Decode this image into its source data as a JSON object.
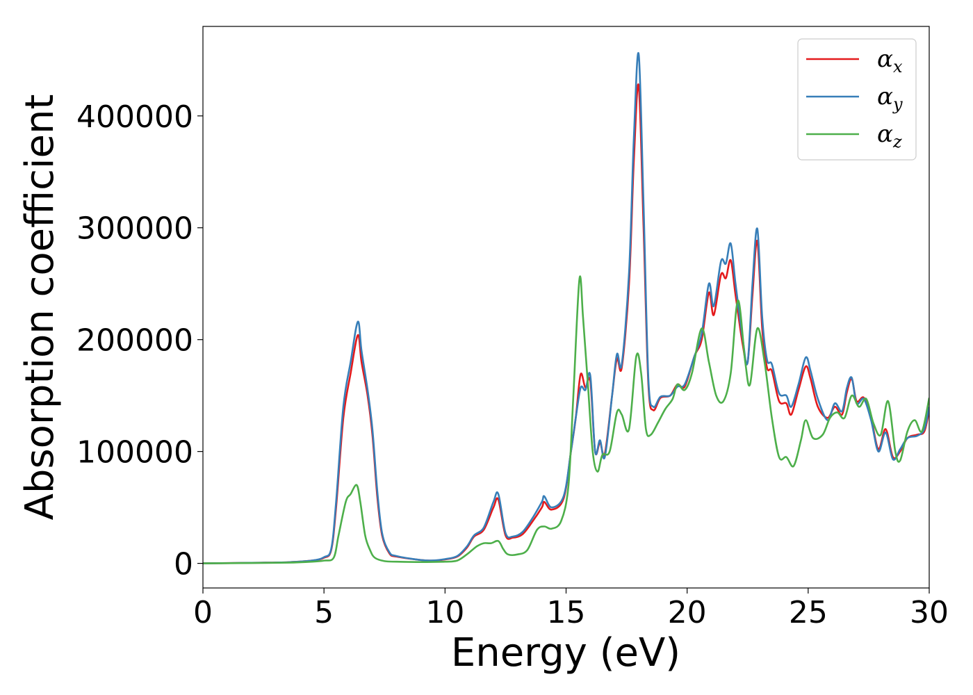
{
  "chart_data": {
    "type": "line",
    "xlabel": "Energy (eV)",
    "ylabel": "Absorption coefficient",
    "xlim": [
      0,
      30
    ],
    "ylim": [
      -22000,
      480000
    ],
    "x_ticks": [
      "0",
      "5",
      "10",
      "15",
      "20",
      "25",
      "30"
    ],
    "x_tick_values": [
      0,
      5,
      10,
      15,
      20,
      25,
      30
    ],
    "y_ticks": [
      "0",
      "100000",
      "200000",
      "300000",
      "400000"
    ],
    "y_tick_values": [
      0,
      100000,
      200000,
      300000,
      400000
    ],
    "grid": false,
    "legend_placement": "top-right",
    "series": [
      {
        "name": "α",
        "subscript": "x",
        "color": "#e41a1c",
        "points": [
          [
            0,
            0
          ],
          [
            2,
            500
          ],
          [
            3.5,
            1000
          ],
          [
            4.5,
            2500
          ],
          [
            5,
            5000
          ],
          [
            5.3,
            12000
          ],
          [
            5.5,
            50000
          ],
          [
            5.8,
            130000
          ],
          [
            6.1,
            170000
          ],
          [
            6.4,
            204000
          ],
          [
            6.55,
            180000
          ],
          [
            6.8,
            150000
          ],
          [
            7.0,
            115000
          ],
          [
            7.2,
            60000
          ],
          [
            7.4,
            25000
          ],
          [
            7.7,
            9000
          ],
          [
            8,
            6000
          ],
          [
            9,
            3000
          ],
          [
            9.5,
            2500
          ],
          [
            10,
            3500
          ],
          [
            10.5,
            6000
          ],
          [
            10.9,
            14000
          ],
          [
            11.2,
            24000
          ],
          [
            11.6,
            30000
          ],
          [
            12.0,
            50000
          ],
          [
            12.2,
            57000
          ],
          [
            12.5,
            25000
          ],
          [
            12.8,
            23000
          ],
          [
            13.2,
            26000
          ],
          [
            13.6,
            37000
          ],
          [
            14.0,
            50000
          ],
          [
            14.1,
            55000
          ],
          [
            14.4,
            48000
          ],
          [
            14.9,
            58000
          ],
          [
            15.2,
            100000
          ],
          [
            15.4,
            130000
          ],
          [
            15.6,
            169000
          ],
          [
            15.8,
            157000
          ],
          [
            16.0,
            163000
          ],
          [
            16.2,
            100000
          ],
          [
            16.4,
            108000
          ],
          [
            16.6,
            98000
          ],
          [
            16.9,
            150000
          ],
          [
            17.1,
            183000
          ],
          [
            17.3,
            175000
          ],
          [
            17.6,
            250000
          ],
          [
            17.8,
            360000
          ],
          [
            18.0,
            427000
          ],
          [
            18.2,
            300000
          ],
          [
            18.4,
            160000
          ],
          [
            18.6,
            137000
          ],
          [
            18.9,
            148000
          ],
          [
            19.3,
            150000
          ],
          [
            19.6,
            160000
          ],
          [
            19.9,
            158000
          ],
          [
            20.3,
            185000
          ],
          [
            20.6,
            200000
          ],
          [
            20.9,
            242000
          ],
          [
            21.1,
            222000
          ],
          [
            21.4,
            258000
          ],
          [
            21.6,
            255000
          ],
          [
            21.8,
            271000
          ],
          [
            22.0,
            240000
          ],
          [
            22.3,
            195000
          ],
          [
            22.5,
            180000
          ],
          [
            22.7,
            240000
          ],
          [
            22.9,
            288000
          ],
          [
            23.1,
            210000
          ],
          [
            23.3,
            175000
          ],
          [
            23.5,
            172000
          ],
          [
            23.8,
            145000
          ],
          [
            24.1,
            143000
          ],
          [
            24.3,
            133000
          ],
          [
            24.6,
            155000
          ],
          [
            24.9,
            176000
          ],
          [
            25.1,
            165000
          ],
          [
            25.4,
            140000
          ],
          [
            25.8,
            130000
          ],
          [
            26.1,
            140000
          ],
          [
            26.4,
            133000
          ],
          [
            26.6,
            153000
          ],
          [
            26.8,
            165000
          ],
          [
            27.0,
            145000
          ],
          [
            27.3,
            148000
          ],
          [
            27.6,
            130000
          ],
          [
            27.9,
            102000
          ],
          [
            28.2,
            120000
          ],
          [
            28.5,
            95000
          ],
          [
            28.8,
            100000
          ],
          [
            29.1,
            112000
          ],
          [
            29.5,
            115000
          ],
          [
            29.8,
            118000
          ],
          [
            30.0,
            137000
          ]
        ]
      },
      {
        "name": "α",
        "subscript": "y",
        "color": "#377eb8",
        "points": [
          [
            0,
            0
          ],
          [
            2,
            500
          ],
          [
            3.5,
            1000
          ],
          [
            4.5,
            2500
          ],
          [
            5,
            5500
          ],
          [
            5.3,
            13000
          ],
          [
            5.5,
            55000
          ],
          [
            5.8,
            140000
          ],
          [
            6.1,
            180000
          ],
          [
            6.4,
            216000
          ],
          [
            6.55,
            190000
          ],
          [
            6.8,
            155000
          ],
          [
            7.0,
            120000
          ],
          [
            7.2,
            65000
          ],
          [
            7.4,
            27000
          ],
          [
            7.7,
            10000
          ],
          [
            8,
            6500
          ],
          [
            9,
            3000
          ],
          [
            9.5,
            2600
          ],
          [
            10,
            3800
          ],
          [
            10.5,
            6500
          ],
          [
            10.9,
            15000
          ],
          [
            11.2,
            25000
          ],
          [
            11.6,
            32000
          ],
          [
            12.0,
            55000
          ],
          [
            12.2,
            62000
          ],
          [
            12.5,
            27000
          ],
          [
            12.8,
            24000
          ],
          [
            13.2,
            28000
          ],
          [
            13.6,
            40000
          ],
          [
            14.0,
            55000
          ],
          [
            14.1,
            60000
          ],
          [
            14.4,
            50000
          ],
          [
            14.9,
            60000
          ],
          [
            15.2,
            100000
          ],
          [
            15.4,
            130000
          ],
          [
            15.6,
            157000
          ],
          [
            15.8,
            155000
          ],
          [
            16.0,
            168000
          ],
          [
            16.2,
            100000
          ],
          [
            16.4,
            110000
          ],
          [
            16.6,
            95000
          ],
          [
            16.9,
            150000
          ],
          [
            17.1,
            187000
          ],
          [
            17.3,
            178000
          ],
          [
            17.6,
            260000
          ],
          [
            17.8,
            380000
          ],
          [
            18.0,
            455000
          ],
          [
            18.2,
            320000
          ],
          [
            18.4,
            165000
          ],
          [
            18.6,
            140000
          ],
          [
            18.9,
            149000
          ],
          [
            19.3,
            150000
          ],
          [
            19.6,
            158000
          ],
          [
            19.9,
            160000
          ],
          [
            20.3,
            185000
          ],
          [
            20.6,
            205000
          ],
          [
            20.9,
            250000
          ],
          [
            21.1,
            230000
          ],
          [
            21.4,
            270000
          ],
          [
            21.6,
            268000
          ],
          [
            21.8,
            286000
          ],
          [
            22.0,
            250000
          ],
          [
            22.3,
            200000
          ],
          [
            22.5,
            180000
          ],
          [
            22.7,
            250000
          ],
          [
            22.9,
            299000
          ],
          [
            23.1,
            220000
          ],
          [
            23.3,
            182000
          ],
          [
            23.5,
            178000
          ],
          [
            23.8,
            152000
          ],
          [
            24.1,
            150000
          ],
          [
            24.3,
            140000
          ],
          [
            24.6,
            160000
          ],
          [
            24.9,
            184000
          ],
          [
            25.1,
            172000
          ],
          [
            25.4,
            147000
          ],
          [
            25.8,
            128000
          ],
          [
            26.1,
            143000
          ],
          [
            26.4,
            136000
          ],
          [
            26.6,
            157000
          ],
          [
            26.8,
            166000
          ],
          [
            27.0,
            143000
          ],
          [
            27.3,
            147000
          ],
          [
            27.6,
            128000
          ],
          [
            27.9,
            100000
          ],
          [
            28.2,
            117000
          ],
          [
            28.5,
            93000
          ],
          [
            28.8,
            102000
          ],
          [
            29.1,
            112000
          ],
          [
            29.5,
            114000
          ],
          [
            29.8,
            120000
          ],
          [
            30.0,
            140000
          ]
        ]
      },
      {
        "name": "α",
        "subscript": "z",
        "color": "#4daf4a",
        "points": [
          [
            0,
            0
          ],
          [
            2,
            300
          ],
          [
            3.5,
            600
          ],
          [
            4.5,
            1500
          ],
          [
            5,
            2500
          ],
          [
            5.4,
            5000
          ],
          [
            5.6,
            25000
          ],
          [
            5.9,
            55000
          ],
          [
            6.1,
            62000
          ],
          [
            6.35,
            70000
          ],
          [
            6.5,
            55000
          ],
          [
            6.7,
            25000
          ],
          [
            6.9,
            12000
          ],
          [
            7.1,
            5000
          ],
          [
            7.5,
            2000
          ],
          [
            8,
            1500
          ],
          [
            9,
            1200
          ],
          [
            10,
            1500
          ],
          [
            10.5,
            2500
          ],
          [
            10.9,
            8000
          ],
          [
            11.3,
            15000
          ],
          [
            11.6,
            18000
          ],
          [
            11.9,
            18000
          ],
          [
            12.2,
            20000
          ],
          [
            12.4,
            13000
          ],
          [
            12.6,
            8000
          ],
          [
            13.0,
            8000
          ],
          [
            13.4,
            12000
          ],
          [
            13.8,
            30000
          ],
          [
            14.1,
            33000
          ],
          [
            14.4,
            31000
          ],
          [
            14.8,
            38000
          ],
          [
            15.1,
            70000
          ],
          [
            15.3,
            150000
          ],
          [
            15.55,
            254000
          ],
          [
            15.7,
            220000
          ],
          [
            15.9,
            160000
          ],
          [
            16.1,
            100000
          ],
          [
            16.3,
            82000
          ],
          [
            16.5,
            97000
          ],
          [
            16.8,
            100000
          ],
          [
            17.1,
            135000
          ],
          [
            17.3,
            133000
          ],
          [
            17.6,
            120000
          ],
          [
            17.9,
            185000
          ],
          [
            18.1,
            170000
          ],
          [
            18.3,
            120000
          ],
          [
            18.5,
            115000
          ],
          [
            18.8,
            126000
          ],
          [
            19.1,
            138000
          ],
          [
            19.4,
            147000
          ],
          [
            19.6,
            160000
          ],
          [
            19.9,
            155000
          ],
          [
            20.2,
            170000
          ],
          [
            20.6,
            210000
          ],
          [
            20.9,
            180000
          ],
          [
            21.2,
            150000
          ],
          [
            21.5,
            145000
          ],
          [
            21.8,
            170000
          ],
          [
            22.1,
            235000
          ],
          [
            22.4,
            180000
          ],
          [
            22.6,
            160000
          ],
          [
            22.9,
            210000
          ],
          [
            23.2,
            180000
          ],
          [
            23.5,
            130000
          ],
          [
            23.8,
            95000
          ],
          [
            24.1,
            95000
          ],
          [
            24.4,
            87000
          ],
          [
            24.7,
            110000
          ],
          [
            24.9,
            128000
          ],
          [
            25.2,
            112000
          ],
          [
            25.6,
            115000
          ],
          [
            25.9,
            130000
          ],
          [
            26.2,
            135000
          ],
          [
            26.5,
            130000
          ],
          [
            26.8,
            150000
          ],
          [
            27.1,
            140000
          ],
          [
            27.4,
            147000
          ],
          [
            27.7,
            125000
          ],
          [
            28.0,
            115000
          ],
          [
            28.3,
            145000
          ],
          [
            28.6,
            100000
          ],
          [
            28.8,
            92000
          ],
          [
            29.1,
            118000
          ],
          [
            29.4,
            128000
          ],
          [
            29.7,
            118000
          ],
          [
            30.0,
            148000
          ]
        ]
      }
    ]
  }
}
